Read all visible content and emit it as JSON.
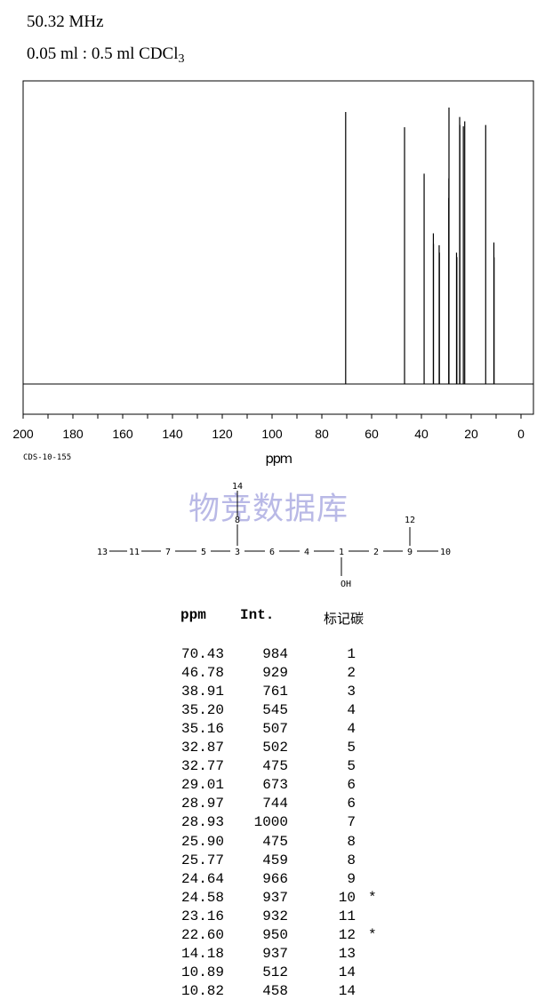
{
  "header": {
    "frequency": "50.32 MHz",
    "concentration_main": "0.05 ml : 0.5 ml CDCl",
    "concentration_sub": "3"
  },
  "sample_id": "CDS-10-155",
  "watermark": "物竞数据库",
  "chart_data": {
    "type": "stick-spectrum",
    "xlabel": "ppm",
    "xlim": [
      200,
      -5
    ],
    "x_ticks": [
      200,
      180,
      160,
      140,
      120,
      100,
      80,
      60,
      40,
      20,
      0
    ],
    "ylim": [
      0,
      1000
    ],
    "grid": false,
    "peaks": [
      {
        "ppm": 70.43,
        "intensity": 984
      },
      {
        "ppm": 46.78,
        "intensity": 929
      },
      {
        "ppm": 38.91,
        "intensity": 761
      },
      {
        "ppm": 35.2,
        "intensity": 545
      },
      {
        "ppm": 35.16,
        "intensity": 507
      },
      {
        "ppm": 32.87,
        "intensity": 502
      },
      {
        "ppm": 32.77,
        "intensity": 475
      },
      {
        "ppm": 29.01,
        "intensity": 673
      },
      {
        "ppm": 28.97,
        "intensity": 744
      },
      {
        "ppm": 28.93,
        "intensity": 1000
      },
      {
        "ppm": 25.9,
        "intensity": 475
      },
      {
        "ppm": 25.77,
        "intensity": 459
      },
      {
        "ppm": 24.64,
        "intensity": 966
      },
      {
        "ppm": 24.58,
        "intensity": 937
      },
      {
        "ppm": 23.16,
        "intensity": 932
      },
      {
        "ppm": 22.6,
        "intensity": 950
      },
      {
        "ppm": 14.18,
        "intensity": 937
      },
      {
        "ppm": 10.89,
        "intensity": 512
      },
      {
        "ppm": 10.82,
        "intensity": 458
      }
    ]
  },
  "structure": {
    "chain": [
      "13",
      "11",
      "7",
      "5",
      "3",
      "6",
      "4",
      "1",
      "2",
      "9",
      "10"
    ],
    "branch_top_left_atom": "8",
    "branch_top_left_end": "14",
    "branch_top_right_end": "12",
    "branch_bottom": "OH"
  },
  "table": {
    "headers": {
      "ppm": "ppm",
      "int": "Int.",
      "carbon": "标记碳"
    },
    "rows": [
      {
        "ppm": "70.43",
        "int": "984",
        "carbon": "1",
        "note": ""
      },
      {
        "ppm": "46.78",
        "int": "929",
        "carbon": "2",
        "note": ""
      },
      {
        "ppm": "38.91",
        "int": "761",
        "carbon": "3",
        "note": ""
      },
      {
        "ppm": "35.20",
        "int": "545",
        "carbon": "4",
        "note": ""
      },
      {
        "ppm": "35.16",
        "int": "507",
        "carbon": "4",
        "note": ""
      },
      {
        "ppm": "32.87",
        "int": "502",
        "carbon": "5",
        "note": ""
      },
      {
        "ppm": "32.77",
        "int": "475",
        "carbon": "5",
        "note": ""
      },
      {
        "ppm": "29.01",
        "int": "673",
        "carbon": "6",
        "note": ""
      },
      {
        "ppm": "28.97",
        "int": "744",
        "carbon": "6",
        "note": ""
      },
      {
        "ppm": "28.93",
        "int": "1000",
        "carbon": "7",
        "note": ""
      },
      {
        "ppm": "25.90",
        "int": "475",
        "carbon": "8",
        "note": ""
      },
      {
        "ppm": "25.77",
        "int": "459",
        "carbon": "8",
        "note": ""
      },
      {
        "ppm": "24.64",
        "int": "966",
        "carbon": "9",
        "note": ""
      },
      {
        "ppm": "24.58",
        "int": "937",
        "carbon": "10",
        "note": "*"
      },
      {
        "ppm": "23.16",
        "int": "932",
        "carbon": "11",
        "note": ""
      },
      {
        "ppm": "22.60",
        "int": "950",
        "carbon": "12",
        "note": "*"
      },
      {
        "ppm": "14.18",
        "int": "937",
        "carbon": "13",
        "note": ""
      },
      {
        "ppm": "10.89",
        "int": "512",
        "carbon": "14",
        "note": ""
      },
      {
        "ppm": "10.82",
        "int": "458",
        "carbon": "14",
        "note": ""
      }
    ]
  }
}
